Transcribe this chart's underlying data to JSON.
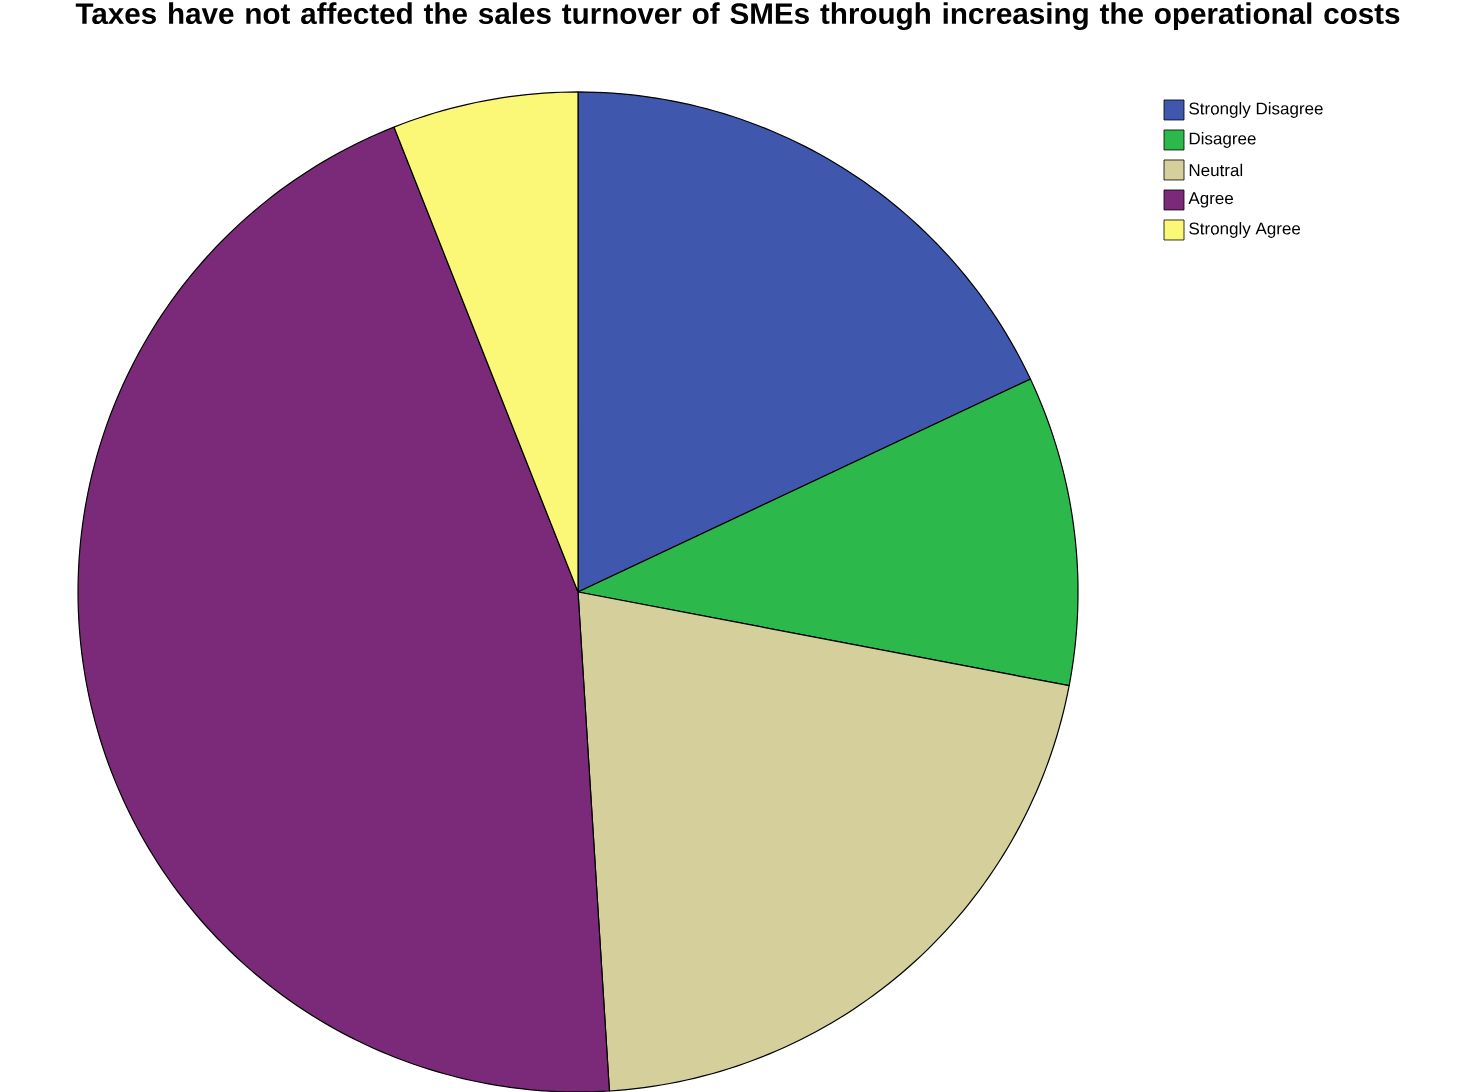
{
  "chart_data": {
    "type": "pie",
    "title": "Taxes have not affected the sales turnover of SMEs through increasing the operational costs",
    "categories": [
      "Strongly Disagree",
      "Disagree",
      "Neutral",
      "Agree",
      "Strongly Agree"
    ],
    "values": [
      18,
      10,
      21,
      45,
      6
    ],
    "colors": [
      "#3f58ae",
      "#2db84b",
      "#d4cf9b",
      "#7b2a7a",
      "#fbf877"
    ],
    "legend": "top right"
  }
}
